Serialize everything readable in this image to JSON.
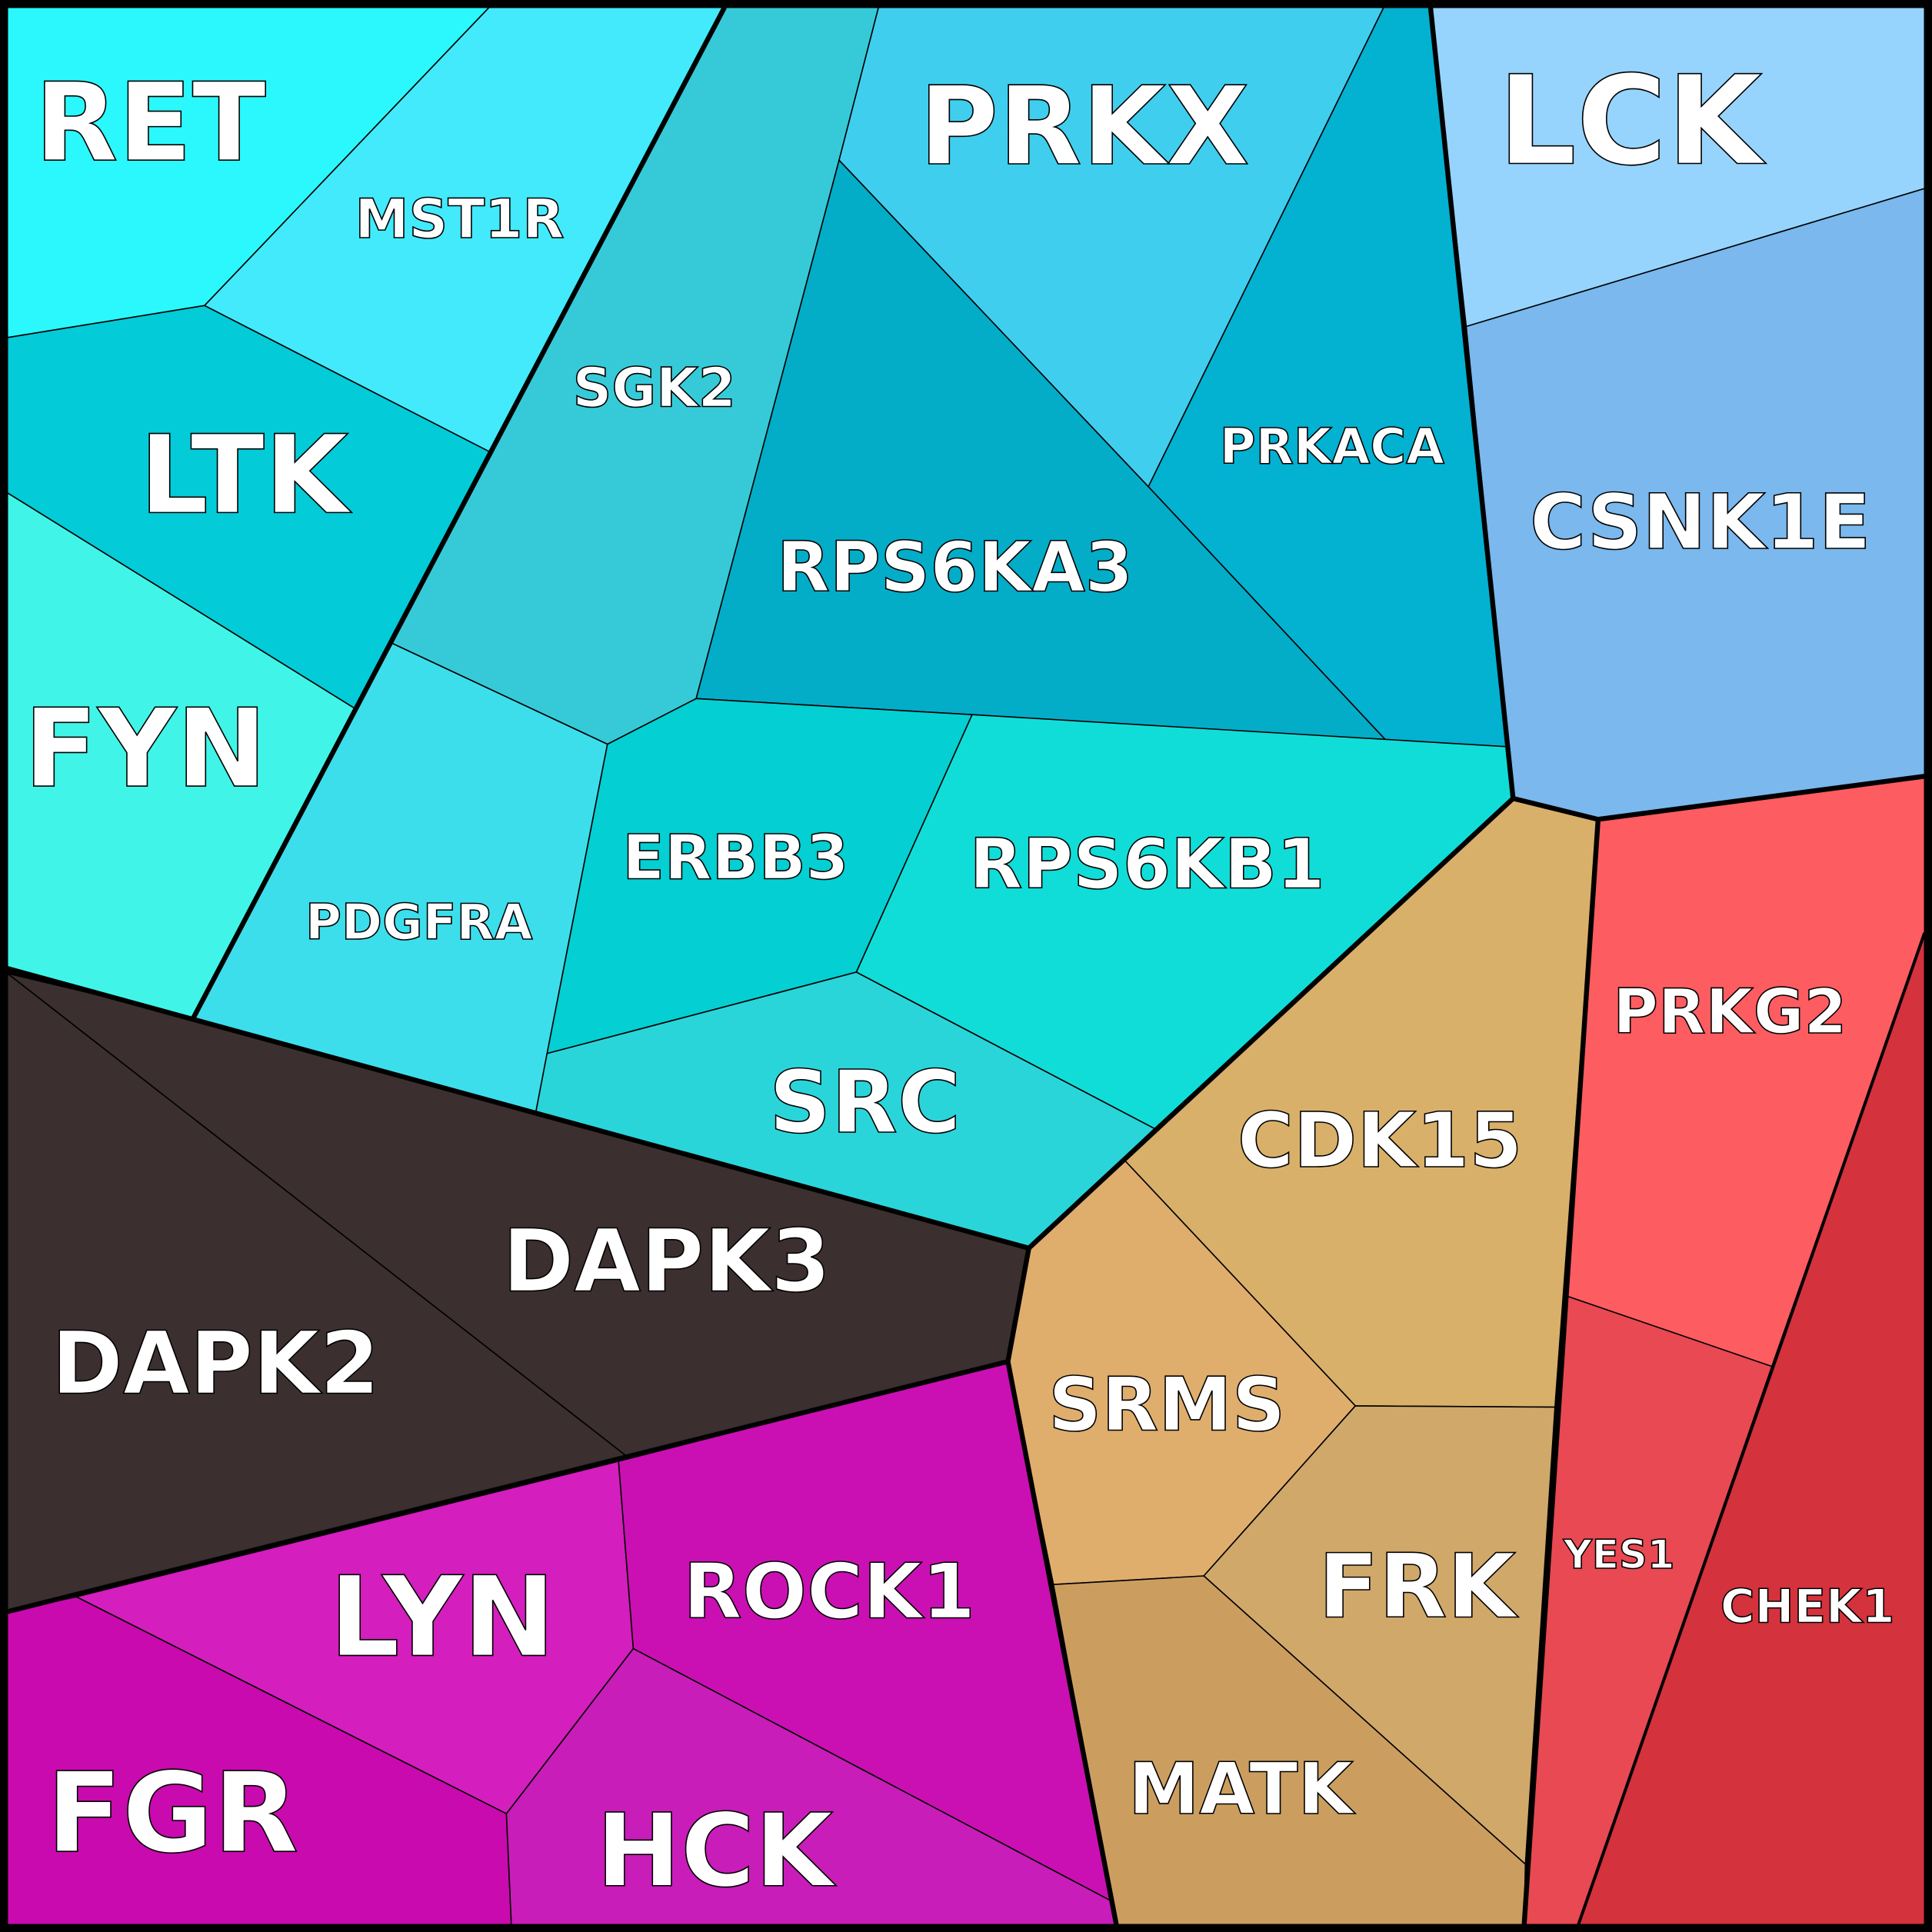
{
  "cells": {
    "RET": {
      "label": "RET",
      "color": "#2af8fc"
    },
    "MST1R": {
      "label": "MST1R",
      "color": "#42eafc"
    },
    "LTK": {
      "label": "LTK",
      "color": "#03cbd8"
    },
    "FYN": {
      "label": "FYN",
      "color": "#40f5e8"
    },
    "SGK2": {
      "label": "SGK2",
      "color": "#36cad8"
    },
    "PDGFRA": {
      "label": "PDGFRA",
      "color": "#3ddeec"
    },
    "PRKX": {
      "label": "PRKX",
      "color": "#40ceef"
    },
    "PRKACA": {
      "label": "PRKACA",
      "color": "#03b1d1"
    },
    "RPS6KA3": {
      "label": "RPS6KA3",
      "color": "#03adc8"
    },
    "ERBB3": {
      "label": "ERBB3",
      "color": "#04cfd2"
    },
    "RPS6KB1": {
      "label": "RPS6KB1",
      "color": "#11ddd8"
    },
    "SRC": {
      "label": "SRC",
      "color": "#2ad5da"
    },
    "DAPK3": {
      "label": "DAPK3",
      "color": "#3b2f2f"
    },
    "DAPK2": {
      "label": "DAPK2",
      "color": "#3b2f2f"
    },
    "LYN": {
      "label": "LYN",
      "color": "#d41ebe"
    },
    "FGR": {
      "label": "FGR",
      "color": "#c90aae"
    },
    "ROCK1": {
      "label": "ROCK1",
      "color": "#ca10b3"
    },
    "HCK": {
      "label": "HCK",
      "color": "#c81db8"
    },
    "LCK": {
      "label": "LCK",
      "color": "#96d4fe"
    },
    "CSNK1E": {
      "label": "CSNK1E",
      "color": "#7ab8ed"
    },
    "CDK15": {
      "label": "CDK15",
      "color": "#d9b06a"
    },
    "SRMS": {
      "label": "SRMS",
      "color": "#dfae6d"
    },
    "FRK": {
      "label": "FRK",
      "color": "#d0a86a"
    },
    "MATK": {
      "label": "MATK",
      "color": "#cb9e60"
    },
    "PRKG2": {
      "label": "PRKG2",
      "color": "#fd5c61"
    },
    "YES1": {
      "label": "YES1",
      "color": "#e84952"
    },
    "CHEK1": {
      "label": "CHEK1",
      "color": "#d4323d"
    }
  }
}
